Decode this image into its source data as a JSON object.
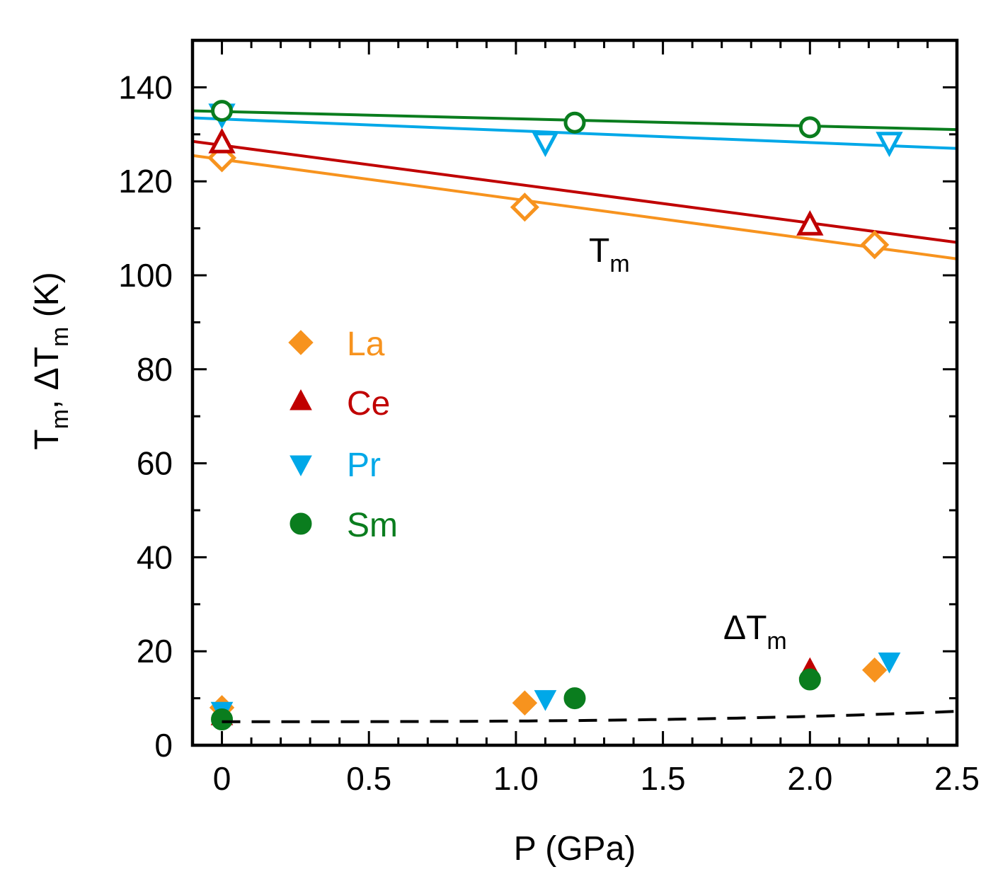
{
  "chart_data": {
    "type": "scatter",
    "xlabel": "P (GPa)",
    "ylabel_parts": {
      "t1": "T",
      "s1": "m",
      "sep": ", ΔT",
      "s2": "m",
      "unit": " (K)"
    },
    "xlim": [
      -0.1,
      2.5
    ],
    "ylim": [
      0,
      150
    ],
    "xticks": [
      0,
      0.5,
      1.0,
      1.5,
      2.0,
      2.5
    ],
    "xtick_labels": [
      "0",
      "0.5",
      "1.0",
      "1.5",
      "2.0",
      "2.5"
    ],
    "yticks": [
      0,
      20,
      40,
      60,
      80,
      100,
      120,
      140
    ],
    "ytick_labels": [
      "0",
      "20",
      "40",
      "60",
      "80",
      "100",
      "120",
      "140"
    ],
    "grid": false,
    "legend_position": "left-middle",
    "annotations": {
      "tm": {
        "main": "T",
        "sub": "m"
      },
      "dtm": {
        "main": "ΔT",
        "sub": "m"
      }
    },
    "series": [
      {
        "name": "La",
        "color": "#F7931E",
        "marker": "diamond",
        "Tm": {
          "x": [
            0,
            1.03,
            2.22
          ],
          "y": [
            125,
            114.5,
            106.5
          ]
        },
        "Tm_fit": [
          [
            -0.1,
            125.5
          ],
          [
            2.5,
            103.5
          ]
        ],
        "dTm": {
          "x": [
            0,
            1.03,
            2.22
          ],
          "y": [
            8,
            9,
            16
          ]
        }
      },
      {
        "name": "Ce",
        "color": "#C00000",
        "marker": "triangle-up",
        "Tm": {
          "x": [
            0,
            2.0
          ],
          "y": [
            128,
            110.5
          ]
        },
        "Tm_fit": [
          [
            -0.1,
            128.5
          ],
          [
            2.5,
            107
          ]
        ],
        "dTm": {
          "x": [
            0,
            2.0
          ],
          "y": [
            6,
            16
          ]
        }
      },
      {
        "name": "Pr",
        "color": "#00A8E8",
        "marker": "triangle-down",
        "Tm": {
          "x": [
            0,
            1.1,
            2.27
          ],
          "y": [
            134.5,
            128.5,
            128.5
          ]
        },
        "Tm_fit": [
          [
            -0.1,
            133.5
          ],
          [
            2.5,
            127
          ]
        ],
        "dTm": {
          "x": [
            0,
            1.1,
            2.27
          ],
          "y": [
            7.5,
            10,
            18
          ]
        }
      },
      {
        "name": "Sm",
        "color": "#0A7D1E",
        "marker": "circle",
        "Tm": {
          "x": [
            0,
            1.2,
            2.0
          ],
          "y": [
            135,
            132.5,
            131.5
          ]
        },
        "Tm_fit": [
          [
            -0.1,
            135
          ],
          [
            2.5,
            131
          ]
        ],
        "dTm": {
          "x": [
            0,
            1.2,
            2.0
          ],
          "y": [
            5.5,
            10,
            14
          ]
        }
      }
    ],
    "dTm_fit": {
      "style": "dashed",
      "color": "#000000",
      "x0": 0,
      "x1": 2.5,
      "a": 5,
      "b": 0.011,
      "c": 0.14
    }
  }
}
